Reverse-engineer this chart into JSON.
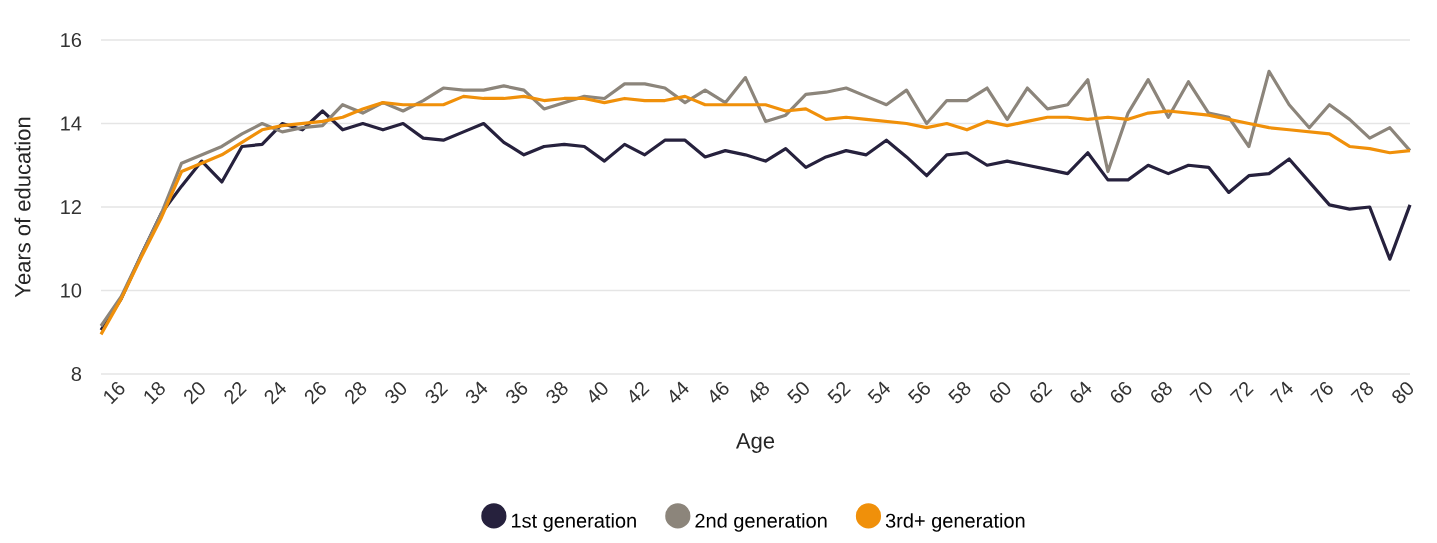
{
  "chart_data": {
    "type": "line",
    "xlabel": "Age",
    "ylabel": "Years of education",
    "x": [
      15,
      16,
      17,
      18,
      19,
      20,
      21,
      22,
      23,
      24,
      25,
      26,
      27,
      28,
      29,
      30,
      31,
      32,
      33,
      34,
      35,
      36,
      37,
      38,
      39,
      40,
      41,
      42,
      43,
      44,
      45,
      46,
      47,
      48,
      49,
      50,
      51,
      52,
      53,
      54,
      55,
      56,
      57,
      58,
      59,
      60,
      61,
      62,
      63,
      64,
      65,
      66,
      67,
      68,
      69,
      70,
      71,
      72,
      73,
      74,
      75,
      76,
      77,
      78,
      79,
      80
    ],
    "series": [
      {
        "name": "1st generation",
        "color": "#26213d",
        "values": [
          9.05,
          9.8,
          10.85,
          11.85,
          12.5,
          13.1,
          12.6,
          13.45,
          13.5,
          14.0,
          13.85,
          14.3,
          13.85,
          14.0,
          13.85,
          14.0,
          13.65,
          13.6,
          13.8,
          14.0,
          13.55,
          13.25,
          13.45,
          13.5,
          13.45,
          13.1,
          13.5,
          13.25,
          13.6,
          13.6,
          13.2,
          13.35,
          13.25,
          13.1,
          13.4,
          12.95,
          13.2,
          13.35,
          13.25,
          13.6,
          13.2,
          12.75,
          13.25,
          13.3,
          13.0,
          13.1,
          13.0,
          12.9,
          12.8,
          13.3,
          12.65,
          12.65,
          13.0,
          12.8,
          13.0,
          12.95,
          12.35,
          12.75,
          12.8,
          13.15,
          12.6,
          12.05,
          11.95,
          12.0,
          10.75,
          12.05
        ]
      },
      {
        "name": "2nd generation",
        "color": "#8c857b",
        "values": [
          9.15,
          9.85,
          10.85,
          11.85,
          13.05,
          13.25,
          13.45,
          13.75,
          14.0,
          13.8,
          13.9,
          13.95,
          14.45,
          14.25,
          14.5,
          14.3,
          14.55,
          14.85,
          14.8,
          14.8,
          14.9,
          14.8,
          14.35,
          14.5,
          14.65,
          14.6,
          14.95,
          14.95,
          14.85,
          14.5,
          14.8,
          14.5,
          15.1,
          14.05,
          14.2,
          14.7,
          14.75,
          14.85,
          14.65,
          14.45,
          14.8,
          14.0,
          14.55,
          14.55,
          14.85,
          14.1,
          14.85,
          14.35,
          14.45,
          15.05,
          12.85,
          14.25,
          15.05,
          14.15,
          15.0,
          14.25,
          14.15,
          13.45,
          15.25,
          14.45,
          13.9,
          14.45,
          14.1,
          13.65,
          13.9,
          13.35
        ]
      },
      {
        "name": "3rd+ generation",
        "color": "#f0900a",
        "values": [
          8.95,
          9.8,
          10.8,
          11.75,
          12.85,
          13.05,
          13.25,
          13.55,
          13.85,
          13.95,
          14.0,
          14.05,
          14.15,
          14.35,
          14.5,
          14.45,
          14.45,
          14.45,
          14.65,
          14.6,
          14.6,
          14.65,
          14.55,
          14.6,
          14.6,
          14.5,
          14.6,
          14.55,
          14.55,
          14.65,
          14.45,
          14.45,
          14.45,
          14.45,
          14.3,
          14.35,
          14.1,
          14.15,
          14.1,
          14.05,
          14.0,
          13.9,
          14.0,
          13.85,
          14.05,
          13.95,
          14.05,
          14.15,
          14.15,
          14.1,
          14.15,
          14.1,
          14.25,
          14.3,
          14.25,
          14.2,
          14.1,
          14.0,
          13.9,
          13.85,
          13.8,
          13.75,
          13.45,
          13.4,
          13.3,
          13.35
        ]
      }
    ],
    "xlim": [
      15,
      80
    ],
    "xticks": [
      16,
      18,
      20,
      22,
      24,
      26,
      28,
      30,
      32,
      34,
      36,
      38,
      40,
      42,
      44,
      46,
      48,
      50,
      52,
      54,
      56,
      58,
      60,
      62,
      64,
      66,
      68,
      70,
      72,
      74,
      76,
      78,
      80
    ],
    "ylim": [
      8,
      16
    ],
    "yticks": [
      8,
      10,
      12,
      14,
      16
    ],
    "grid": "y",
    "legend": "bottom",
    "marker": "none",
    "line_style": "solid"
  }
}
